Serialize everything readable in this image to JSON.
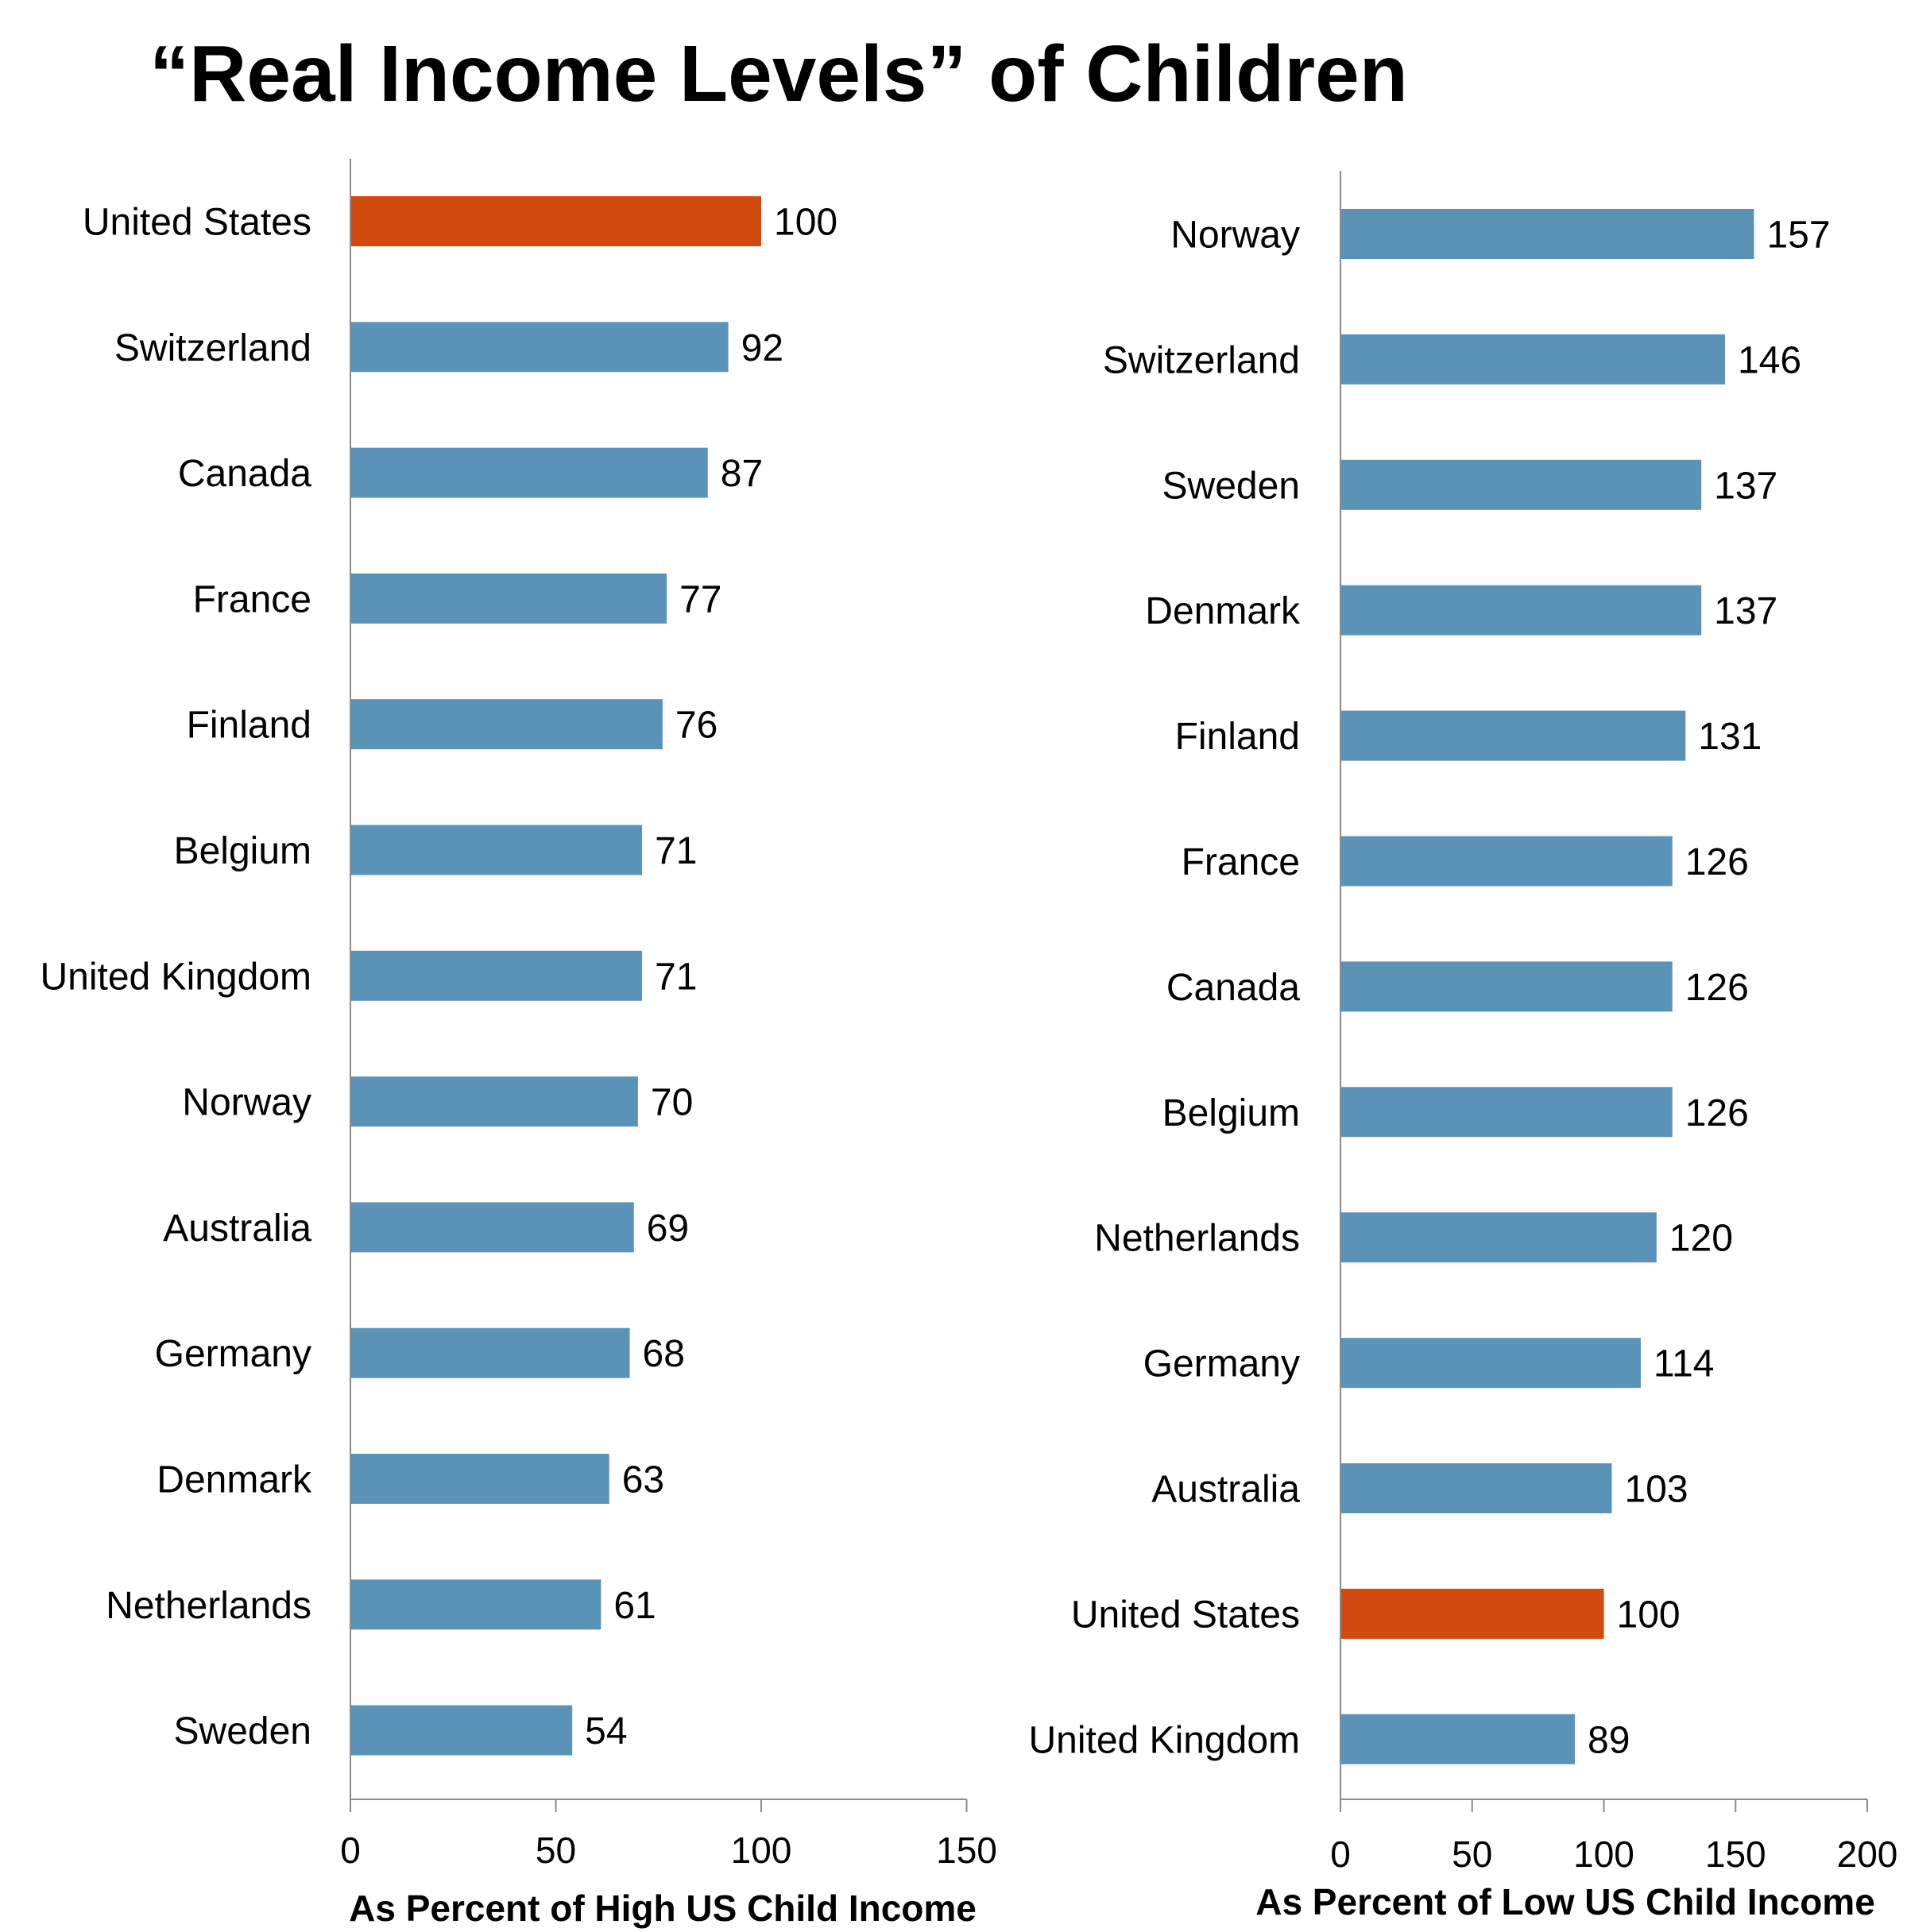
{
  "title": "“Real Income Levels” of Children",
  "colors": {
    "bar": "#5b93b8",
    "highlight": "#d24a0e",
    "axis": "#8a8a8a"
  },
  "chart_data": [
    {
      "type": "bar",
      "orientation": "horizontal",
      "xlabel": "As Percent of High US Child Income",
      "xlim": [
        0,
        150
      ],
      "xticks": [
        0,
        50,
        100,
        150
      ],
      "grid": false,
      "highlight_category": "United States",
      "categories": [
        "United States",
        "Switzerland",
        "Canada",
        "France",
        "Finland",
        "Belgium",
        "United Kingdom",
        "Norway",
        "Australia",
        "Germany",
        "Denmark",
        "Netherlands",
        "Sweden"
      ],
      "values": [
        100,
        92,
        87,
        77,
        76,
        71,
        71,
        70,
        69,
        68,
        63,
        61,
        54
      ]
    },
    {
      "type": "bar",
      "orientation": "horizontal",
      "xlabel": "As Percent of Low US Child Income",
      "xlim": [
        0,
        200
      ],
      "xticks": [
        0,
        50,
        100,
        150,
        200
      ],
      "grid": false,
      "highlight_category": "United States",
      "categories": [
        "Norway",
        "Switzerland",
        "Sweden",
        "Denmark",
        "Finland",
        "France",
        "Canada",
        "Belgium",
        "Netherlands",
        "Germany",
        "Australia",
        "United States",
        "United Kingdom"
      ],
      "values": [
        157,
        146,
        137,
        137,
        131,
        126,
        126,
        126,
        120,
        114,
        103,
        100,
        89
      ]
    }
  ]
}
